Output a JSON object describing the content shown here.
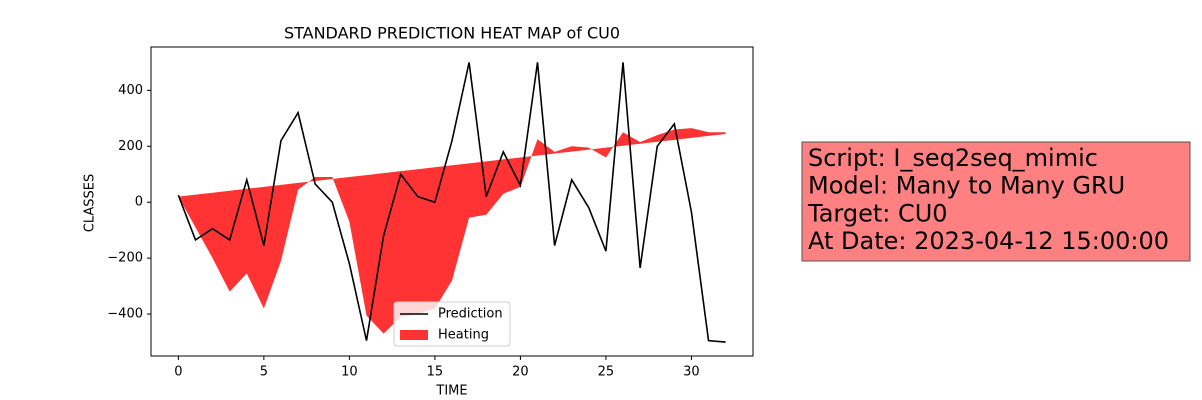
{
  "chart_data": {
    "type": "line-area",
    "title": "STANDARD PREDICTION HEAT MAP of CU0",
    "xlabel": "TIME",
    "ylabel": "CLASSES",
    "x": [
      0,
      1,
      2,
      3,
      4,
      5,
      6,
      7,
      8,
      9,
      10,
      11,
      12,
      13,
      14,
      15,
      16,
      17,
      18,
      19,
      20,
      21,
      22,
      23,
      24,
      25,
      26,
      27,
      28,
      29,
      30,
      31,
      32
    ],
    "series": [
      {
        "name": "Prediction",
        "color": "#000000",
        "values": [
          25,
          -135,
          -95,
          -135,
          80,
          -155,
          220,
          320,
          65,
          0,
          -220,
          -495,
          -120,
          100,
          20,
          0,
          220,
          500,
          20,
          180,
          60,
          500,
          -155,
          80,
          -20,
          -175,
          500,
          -235,
          200,
          280,
          -35,
          -495,
          -500
        ]
      }
    ],
    "areas": [
      {
        "name": "Heating",
        "color": "#ff3333",
        "y1": [
          20,
          27,
          34,
          41,
          48,
          55,
          62,
          69,
          76,
          83,
          90,
          97,
          104,
          111,
          118,
          125,
          132,
          139,
          146,
          153,
          160,
          167,
          174,
          181,
          188,
          195,
          202,
          209,
          216,
          223,
          230,
          237,
          244
        ],
        "y2": [
          20,
          -90,
          -200,
          -320,
          -255,
          -380,
          -210,
          45,
          90,
          90,
          -70,
          -405,
          -470,
          -410,
          -400,
          -380,
          -280,
          -55,
          -45,
          30,
          55,
          225,
          180,
          200,
          195,
          160,
          250,
          215,
          240,
          260,
          265,
          250,
          250
        ]
      }
    ],
    "xlim": [
      -1.6,
      33.6
    ],
    "ylim": [
      -550,
      555
    ],
    "xticks": [
      0,
      5,
      10,
      15,
      20,
      25,
      30
    ],
    "yticks": [
      {
        "value": -400,
        "label": "−400"
      },
      {
        "value": -200,
        "label": "−200"
      },
      0,
      200,
      400
    ],
    "legend": "lower center",
    "annotation": {
      "lines": [
        "Script: I_seq2seq_mimic",
        "Model: Many to Many GRU",
        "Target: CU0",
        "At Date: 2023-04-12 15:00:00"
      ],
      "color": "#ff8080"
    }
  }
}
